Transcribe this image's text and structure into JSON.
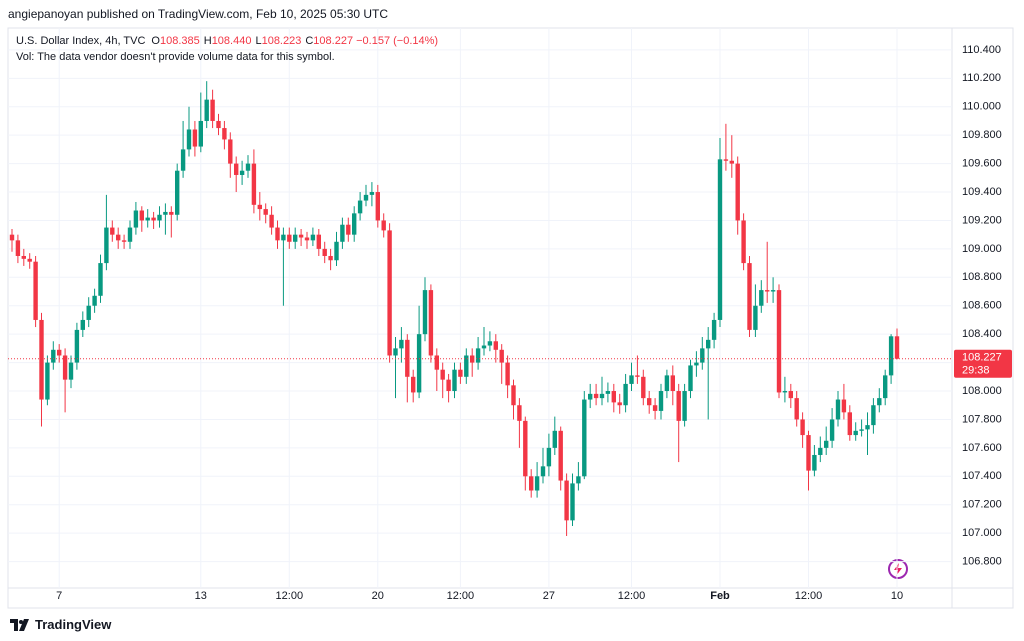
{
  "header": {
    "publisher": "angiepanoyan published on TradingView.com, Feb 10, 2025 05:30 UTC"
  },
  "footer": {
    "brand": "TradingView"
  },
  "chart_data": {
    "type": "candlestick",
    "symbol": "U.S. Dollar Index, 4h, TVC",
    "legend_items": [
      {
        "key": "O",
        "text": "108.385"
      },
      {
        "key": "H",
        "text": "108.440"
      },
      {
        "key": "L",
        "text": "108.223"
      },
      {
        "key": "C",
        "text": "108.227"
      }
    ],
    "change": "−0.157 (−0.14%)",
    "subtitle": "Vol: The data vendor doesn't provide volume data for this symbol.",
    "last_price_label": "108.227",
    "countdown": "29:38",
    "up_color": "#089981",
    "down_color": "#f23645",
    "grid": true,
    "categories": [
      null,
      null,
      null,
      null,
      null,
      null,
      null,
      null,
      "7",
      null,
      null,
      null,
      null,
      null,
      null,
      null,
      null,
      null,
      null,
      null,
      null,
      null,
      null,
      null,
      null,
      null,
      null,
      null,
      null,
      null,
      null,
      null,
      "13",
      null,
      null,
      null,
      null,
      null,
      null,
      null,
      null,
      null,
      null,
      null,
      null,
      null,
      null,
      "12:00",
      null,
      null,
      null,
      null,
      null,
      null,
      null,
      null,
      null,
      null,
      null,
      null,
      null,
      null,
      "20",
      null,
      null,
      null,
      null,
      null,
      null,
      null,
      null,
      null,
      null,
      null,
      null,
      null,
      "12:00",
      null,
      null,
      null,
      null,
      null,
      null,
      null,
      null,
      null,
      null,
      null,
      null,
      null,
      null,
      "27",
      null,
      null,
      null,
      null,
      null,
      null,
      null,
      null,
      null,
      null,
      null,
      null,
      null,
      "12:00",
      null,
      null,
      null,
      null,
      null,
      null,
      null,
      null,
      null,
      null,
      null,
      null,
      null,
      null,
      "Feb",
      null,
      null,
      null,
      null,
      null,
      null,
      null,
      null,
      null,
      null,
      null,
      null,
      null,
      null,
      "12:00",
      null,
      null,
      null,
      null,
      null,
      null,
      null,
      null,
      null,
      null,
      null,
      null,
      null,
      null,
      "10"
    ],
    "open": [
      109.1,
      109.06,
      108.95,
      108.93,
      108.91,
      108.5,
      107.94,
      108.2,
      108.29,
      108.25,
      108.08,
      108.2,
      108.43,
      108.5,
      108.6,
      108.67,
      108.9,
      109.15,
      109.1,
      109.06,
      109.05,
      109.15,
      109.27,
      109.2,
      109.22,
      109.2,
      109.24,
      109.26,
      109.24,
      109.55,
      109.7,
      109.84,
      109.72,
      109.9,
      110.05,
      109.9,
      109.85,
      109.77,
      109.6,
      109.52,
      109.55,
      109.6,
      109.31,
      109.28,
      109.24,
      109.15,
      109.06,
      109.1,
      109.05,
      109.1,
      109.08,
      109.06,
      109.1,
      109.0,
      108.95,
      108.92,
      109.05,
      109.17,
      109.1,
      109.25,
      109.34,
      109.38,
      109.4,
      109.2,
      109.13,
      108.25,
      108.3,
      108.36,
      108.1,
      107.99,
      108.4,
      108.71,
      108.25,
      108.15,
      108.08,
      108.0,
      108.15,
      108.1,
      108.25,
      108.2,
      108.3,
      108.32,
      108.35,
      108.29,
      108.2,
      108.04,
      107.9,
      107.79,
      107.4,
      107.3,
      107.4,
      107.47,
      107.6,
      107.72,
      107.37,
      107.09,
      107.35,
      107.4,
      107.94,
      107.98,
      107.95,
      107.98,
      108.0,
      107.92,
      107.9,
      108.05,
      108.11,
      108.1,
      107.95,
      107.9,
      107.86,
      108.0,
      108.11,
      108.0,
      107.79,
      108.0,
      108.18,
      108.2,
      108.3,
      108.36,
      108.5,
      109.63,
      109.62,
      109.6,
      109.2,
      108.9,
      108.43,
      108.6,
      108.71,
      108.7,
      108.71,
      107.99,
      108.0,
      107.95,
      107.8,
      107.69,
      107.44,
      107.55,
      107.6,
      107.65,
      107.8,
      107.94,
      107.85,
      107.69,
      107.72,
      107.73,
      107.76,
      107.9,
      107.95,
      108.11,
      108.385
    ],
    "high": [
      109.14,
      109.1,
      109.0,
      108.97,
      108.95,
      108.55,
      108.25,
      108.35,
      108.33,
      108.3,
      108.25,
      108.48,
      108.56,
      108.66,
      108.72,
      108.96,
      109.38,
      109.2,
      109.15,
      109.1,
      109.2,
      109.33,
      109.3,
      109.28,
      109.26,
      109.3,
      109.32,
      109.3,
      109.6,
      109.9,
      110.0,
      109.9,
      110.1,
      110.18,
      110.12,
      109.95,
      109.9,
      109.82,
      109.65,
      109.62,
      109.66,
      109.7,
      109.4,
      109.32,
      109.3,
      109.2,
      109.15,
      109.15,
      109.15,
      109.14,
      109.12,
      109.15,
      109.14,
      109.05,
      109.0,
      109.12,
      109.22,
      109.22,
      109.3,
      109.4,
      109.45,
      109.47,
      109.45,
      109.25,
      109.18,
      108.38,
      108.45,
      108.4,
      108.15,
      108.6,
      108.8,
      108.75,
      108.3,
      108.2,
      108.12,
      108.2,
      108.2,
      108.3,
      108.3,
      108.38,
      108.45,
      108.42,
      108.4,
      108.33,
      108.25,
      108.08,
      107.95,
      107.82,
      107.45,
      107.5,
      107.6,
      107.7,
      107.82,
      107.75,
      107.42,
      107.42,
      107.5,
      108.0,
      108.05,
      108.05,
      108.1,
      108.06,
      108.05,
      107.98,
      108.12,
      108.2,
      108.25,
      108.15,
      108.0,
      107.95,
      108.05,
      108.15,
      108.18,
      108.05,
      108.05,
      108.22,
      108.28,
      108.38,
      108.45,
      108.55,
      109.78,
      109.88,
      109.8,
      109.65,
      109.25,
      108.95,
      108.75,
      108.78,
      109.05,
      108.8,
      108.75,
      108.1,
      108.05,
      108.0,
      107.85,
      107.72,
      107.62,
      107.68,
      107.75,
      107.88,
      108.0,
      108.05,
      107.9,
      107.78,
      107.8,
      107.85,
      107.95,
      108.02,
      108.15,
      108.4,
      108.44
    ],
    "low": [
      108.98,
      108.9,
      108.88,
      108.86,
      108.45,
      107.75,
      107.9,
      108.15,
      108.2,
      107.85,
      108.02,
      108.15,
      108.38,
      108.45,
      108.55,
      108.62,
      108.85,
      109.05,
      109.0,
      109.0,
      109.0,
      109.1,
      109.12,
      109.15,
      109.14,
      109.15,
      109.1,
      109.08,
      109.2,
      109.5,
      109.65,
      109.65,
      109.68,
      109.85,
      109.85,
      109.8,
      109.7,
      109.5,
      109.4,
      109.45,
      109.5,
      109.25,
      109.2,
      109.18,
      109.1,
      109.0,
      108.6,
      109.0,
      109.0,
      109.02,
      109.0,
      109.02,
      108.95,
      108.9,
      108.85,
      108.88,
      109.0,
      109.05,
      109.05,
      109.2,
      109.3,
      109.3,
      109.15,
      109.08,
      108.2,
      107.95,
      108.2,
      107.92,
      107.92,
      107.95,
      108.35,
      108.2,
      108.0,
      107.95,
      107.92,
      107.95,
      108.05,
      108.05,
      108.1,
      108.15,
      108.25,
      108.28,
      108.2,
      108.05,
      107.95,
      107.8,
      107.6,
      107.3,
      107.25,
      107.25,
      107.35,
      107.4,
      107.55,
      107.3,
      106.98,
      107.05,
      107.3,
      107.38,
      107.88,
      107.9,
      107.9,
      107.92,
      107.85,
      107.84,
      107.85,
      108.0,
      108.05,
      107.9,
      107.84,
      107.8,
      107.8,
      107.95,
      107.9,
      107.5,
      107.75,
      107.95,
      108.1,
      108.15,
      107.8,
      108.3,
      108.45,
      109.55,
      109.5,
      109.1,
      108.85,
      108.38,
      108.38,
      108.55,
      108.62,
      108.62,
      107.95,
      107.92,
      107.88,
      107.75,
      107.6,
      107.3,
      107.4,
      107.5,
      107.55,
      107.6,
      107.75,
      107.8,
      107.65,
      107.65,
      107.68,
      107.55,
      107.7,
      107.85,
      107.9,
      108.05,
      108.223
    ],
    "close": [
      109.06,
      108.95,
      108.93,
      108.91,
      108.5,
      107.94,
      108.2,
      108.29,
      108.25,
      108.08,
      108.2,
      108.43,
      108.5,
      108.6,
      108.67,
      108.9,
      109.15,
      109.1,
      109.06,
      109.05,
      109.15,
      109.27,
      109.2,
      109.22,
      109.2,
      109.24,
      109.26,
      109.24,
      109.55,
      109.7,
      109.84,
      109.72,
      109.9,
      110.05,
      109.9,
      109.85,
      109.77,
      109.6,
      109.52,
      109.55,
      109.6,
      109.31,
      109.28,
      109.24,
      109.15,
      109.06,
      109.1,
      109.05,
      109.1,
      109.08,
      109.06,
      109.1,
      109.0,
      108.95,
      108.92,
      109.05,
      109.17,
      109.1,
      109.25,
      109.34,
      109.38,
      109.4,
      109.2,
      109.13,
      108.25,
      108.3,
      108.36,
      108.1,
      107.99,
      108.4,
      108.71,
      108.25,
      108.15,
      108.08,
      108.0,
      108.15,
      108.1,
      108.25,
      108.2,
      108.3,
      108.32,
      108.35,
      108.29,
      108.2,
      108.04,
      107.9,
      107.79,
      107.4,
      107.3,
      107.4,
      107.47,
      107.6,
      107.72,
      107.37,
      107.09,
      107.35,
      107.4,
      107.94,
      107.98,
      107.95,
      107.98,
      108.0,
      107.92,
      107.9,
      108.05,
      108.11,
      108.1,
      107.95,
      107.9,
      107.86,
      108.0,
      108.11,
      108.0,
      107.79,
      108.0,
      108.18,
      108.2,
      108.3,
      108.36,
      108.5,
      109.63,
      109.62,
      109.6,
      109.2,
      108.9,
      108.43,
      108.6,
      108.71,
      108.7,
      108.71,
      107.99,
      108.0,
      107.95,
      107.8,
      107.69,
      107.44,
      107.55,
      107.6,
      107.65,
      107.8,
      107.94,
      107.85,
      107.69,
      107.72,
      107.73,
      107.76,
      107.9,
      107.95,
      108.11,
      108.385,
      108.227
    ],
    "ylim": [
      106.6,
      110.54
    ],
    "yticks": [
      {
        "value": 106.8,
        "label": "106.800"
      },
      {
        "value": 107.0,
        "label": "107.000"
      },
      {
        "value": 107.2,
        "label": "107.200"
      },
      {
        "value": 107.4,
        "label": "107.400"
      },
      {
        "value": 107.6,
        "label": "107.600"
      },
      {
        "value": 107.8,
        "label": "107.800"
      },
      {
        "value": 108.0,
        "label": "108.000"
      },
      {
        "value": 108.2,
        "label": "108.200"
      },
      {
        "value": 108.4,
        "label": "108.400"
      },
      {
        "value": 108.6,
        "label": "108.600"
      },
      {
        "value": 108.8,
        "label": "108.800"
      },
      {
        "value": 109.0,
        "label": "109.000"
      },
      {
        "value": 109.2,
        "label": "109.200"
      },
      {
        "value": 109.4,
        "label": "109.400"
      },
      {
        "value": 109.6,
        "label": "109.600"
      },
      {
        "value": 109.8,
        "label": "109.800"
      },
      {
        "value": 110.0,
        "label": "110.000"
      },
      {
        "value": 110.2,
        "label": "110.200"
      },
      {
        "value": 110.4,
        "label": "110.400"
      }
    ]
  }
}
